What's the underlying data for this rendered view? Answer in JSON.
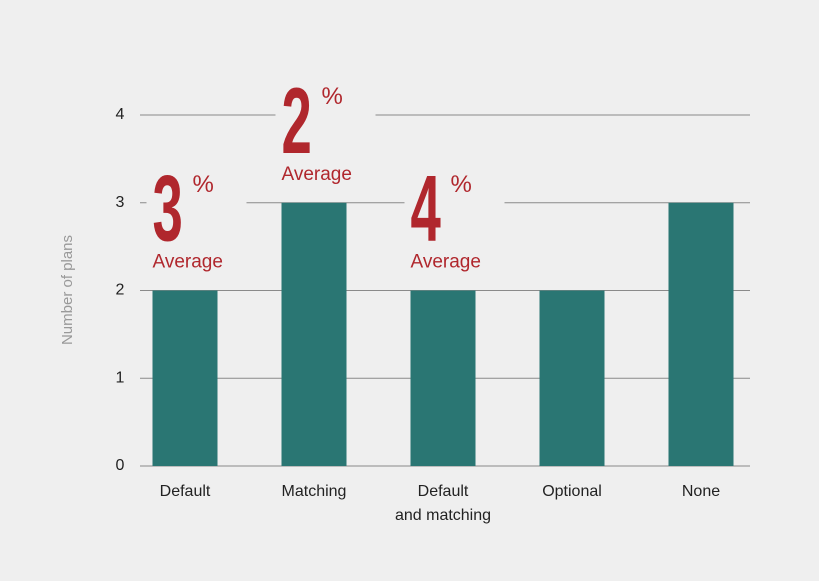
{
  "chart_data": {
    "type": "bar",
    "y_label": "Number of plans",
    "categories": [
      "Default",
      "Matching",
      "Default\nand matching",
      "Optional",
      "None"
    ],
    "values": [
      2,
      3,
      2,
      2,
      3
    ],
    "color": "#2a7673",
    "ylim": [
      0,
      4
    ],
    "yticks": [
      0,
      1,
      2,
      3,
      4
    ],
    "grid": true,
    "annotations": [
      {
        "number": 3,
        "unit": "%",
        "label": "Average"
      },
      {
        "number": 2,
        "unit": "%",
        "label": "Average"
      },
      {
        "number": 4,
        "unit": "%",
        "label": "Average"
      }
    ],
    "annotation_color": "#b0272d"
  }
}
